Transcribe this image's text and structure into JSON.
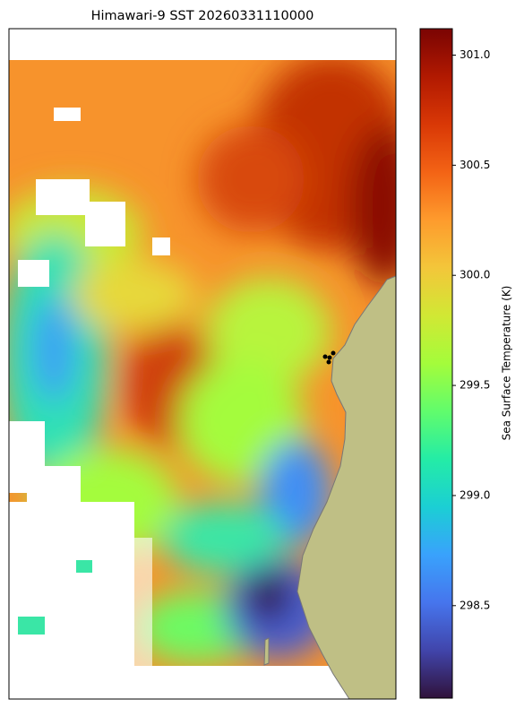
{
  "chart_data": {
    "type": "map",
    "title": "Himawari-9 SST 20260331110000",
    "colorbar": {
      "label": "Sea Surface Temperature (K)",
      "lim": [
        298.08,
        301.12
      ],
      "ticks": [
        298.5,
        {
          "value": 299.0,
          "label": "299.0"
        },
        299.5,
        {
          "value": 300.0,
          "label": "300.0"
        },
        300.5,
        {
          "value": 301.0,
          "label": "301.0"
        }
      ],
      "colors": [
        "#30123b",
        "#4145ab",
        "#4675ed",
        "#39a2fc",
        "#1bcfd4",
        "#24eca6",
        "#61fc6c",
        "#a4fc3b",
        "#d1e834",
        "#f3c63a",
        "#fe9b2d",
        "#f36315",
        "#d93806",
        "#b11901",
        "#7a0403"
      ]
    }
  }
}
